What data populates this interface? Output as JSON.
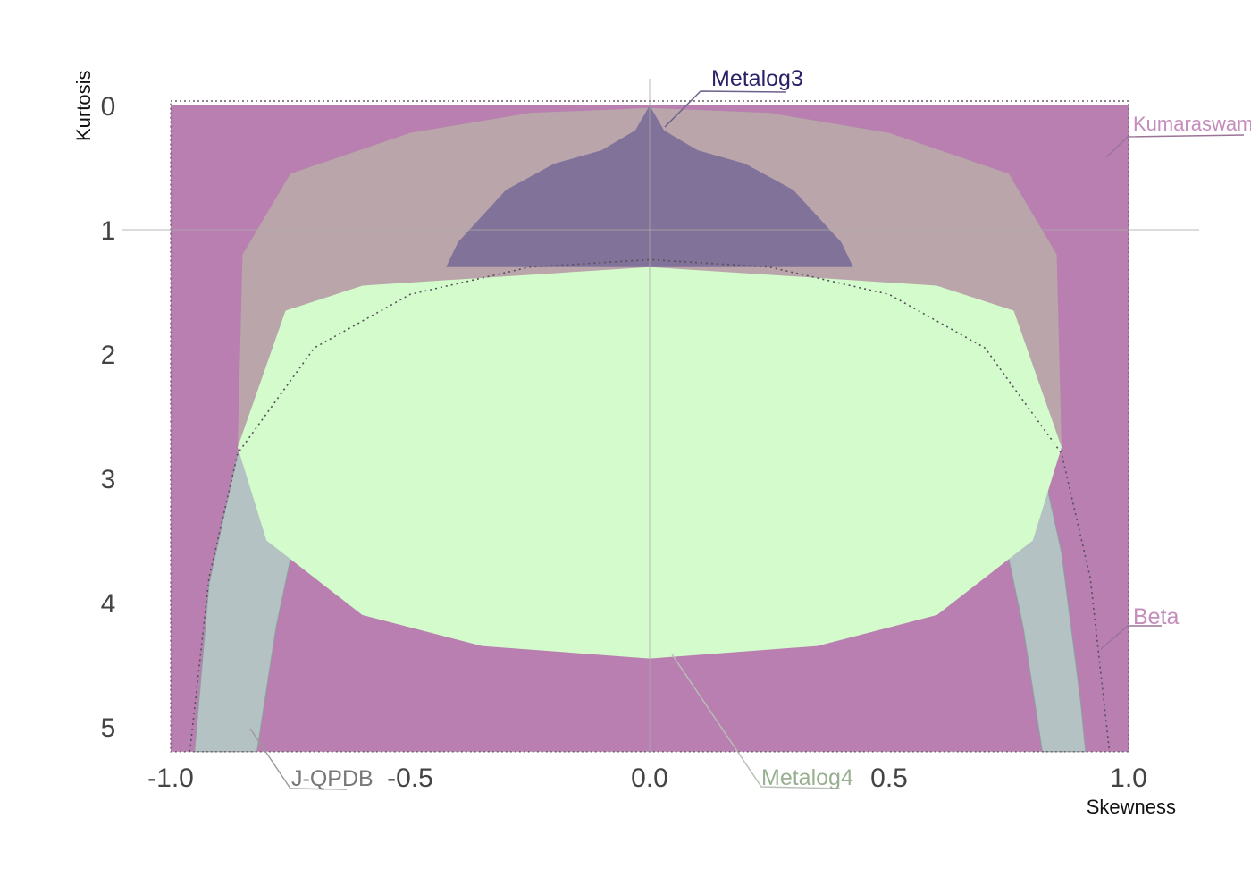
{
  "chart_data": {
    "type": "area",
    "title": "",
    "xlabel": "Skewness",
    "ylabel": "Kurtosis",
    "xlim": [
      -1.0,
      1.0
    ],
    "ylim": [
      0,
      5.2
    ],
    "y_inverted": true,
    "x_ticks": [
      "-1.0",
      "-0.5",
      "0.0",
      "0.5",
      "1.0"
    ],
    "y_ticks": [
      "0",
      "1",
      "2",
      "3",
      "4",
      "5"
    ],
    "grid": false,
    "reference_lines": {
      "x": 0.0,
      "y": 1.0
    },
    "series": [
      {
        "name": "Kumaraswamy",
        "color": "#b87fb0",
        "points": [
          [
            -1.0,
            0.0
          ],
          [
            1.0,
            0.0
          ],
          [
            1.0,
            5.2
          ],
          [
            -1.0,
            5.2
          ]
        ]
      },
      {
        "name": "Beta",
        "color": "#b87fb0",
        "points": [
          [
            -0.96,
            5.2
          ],
          [
            -0.92,
            3.8
          ],
          [
            -0.86,
            2.8
          ],
          [
            -0.7,
            1.95
          ],
          [
            -0.5,
            1.52
          ],
          [
            -0.25,
            1.3
          ],
          [
            0.0,
            1.24
          ],
          [
            0.25,
            1.3
          ],
          [
            0.5,
            1.52
          ],
          [
            0.7,
            1.95
          ],
          [
            0.86,
            2.8
          ],
          [
            0.92,
            3.8
          ],
          [
            0.96,
            5.2
          ]
        ]
      },
      {
        "name": "J-QPDB",
        "color": "#b5c2c4",
        "points": [
          [
            -0.95,
            5.2
          ],
          [
            -0.92,
            3.85
          ],
          [
            -0.86,
            2.8
          ],
          [
            -0.75,
            2.1
          ],
          [
            -0.5,
            1.52
          ],
          [
            -0.25,
            1.33
          ],
          [
            0.0,
            1.24
          ],
          [
            0.25,
            1.33
          ],
          [
            0.5,
            1.5
          ],
          [
            0.65,
            1.8
          ],
          [
            0.74,
            2.2
          ],
          [
            0.82,
            2.9
          ],
          [
            0.86,
            3.6
          ],
          [
            0.9,
            4.8
          ],
          [
            0.91,
            5.2
          ],
          [
            0.82,
            5.2
          ],
          [
            0.78,
            4.2
          ],
          [
            0.72,
            3.1
          ],
          [
            0.6,
            2.05
          ],
          [
            0.4,
            1.45
          ],
          [
            0.0,
            1.26
          ],
          [
            -0.4,
            1.45
          ],
          [
            -0.6,
            2.05
          ],
          [
            -0.72,
            3.1
          ],
          [
            -0.78,
            4.2
          ],
          [
            -0.82,
            5.2
          ]
        ]
      },
      {
        "name": "Metalog4",
        "color": "#d4fbcc",
        "points": [
          [
            -0.86,
            2.75
          ],
          [
            -0.85,
            2.3
          ],
          [
            -0.76,
            1.65
          ],
          [
            -0.6,
            1.45
          ],
          [
            -0.3,
            1.32
          ],
          [
            0.0,
            1.3
          ],
          [
            0.3,
            1.32
          ],
          [
            0.6,
            1.45
          ],
          [
            0.76,
            1.65
          ],
          [
            0.85,
            2.3
          ],
          [
            0.86,
            2.75
          ],
          [
            0.8,
            3.5
          ],
          [
            0.6,
            4.1
          ],
          [
            0.35,
            4.35
          ],
          [
            0.0,
            4.45
          ],
          [
            -0.35,
            4.35
          ],
          [
            -0.6,
            4.1
          ],
          [
            -0.8,
            3.5
          ]
        ]
      },
      {
        "name": "Kumaraswamy",
        "color": "#b9a5aa",
        "points": [
          [
            -0.86,
            2.75
          ],
          [
            -0.85,
            1.2
          ],
          [
            -0.75,
            0.55
          ],
          [
            -0.5,
            0.22
          ],
          [
            -0.25,
            0.06
          ],
          [
            0.0,
            0.02
          ],
          [
            0.25,
            0.06
          ],
          [
            0.5,
            0.22
          ],
          [
            0.75,
            0.55
          ],
          [
            0.85,
            1.2
          ],
          [
            0.86,
            2.75
          ],
          [
            0.76,
            1.65
          ],
          [
            0.6,
            1.45
          ],
          [
            0.0,
            1.3
          ],
          [
            -0.6,
            1.45
          ],
          [
            -0.76,
            1.65
          ]
        ]
      },
      {
        "name": "Metalog3",
        "color": "#81729a",
        "points": [
          [
            0.0,
            0.0
          ],
          [
            -0.03,
            0.2
          ],
          [
            -0.1,
            0.36
          ],
          [
            -0.2,
            0.47
          ],
          [
            -0.3,
            0.68
          ],
          [
            -0.4,
            1.1
          ],
          [
            -0.425,
            1.3
          ],
          [
            0.425,
            1.3
          ],
          [
            0.4,
            1.1
          ],
          [
            0.3,
            0.68
          ],
          [
            0.2,
            0.47
          ],
          [
            0.1,
            0.36
          ],
          [
            0.03,
            0.2
          ]
        ]
      }
    ],
    "labels": [
      {
        "text": "Metalog3",
        "color": "#2a2268"
      },
      {
        "text": "Kumaraswamy",
        "color": "#c48dbb"
      },
      {
        "text": "Beta",
        "color": "#c48dbb"
      },
      {
        "text": "J-QPDB",
        "color": "#787878"
      },
      {
        "text": "Metalog4",
        "color": "#98b090"
      }
    ]
  }
}
